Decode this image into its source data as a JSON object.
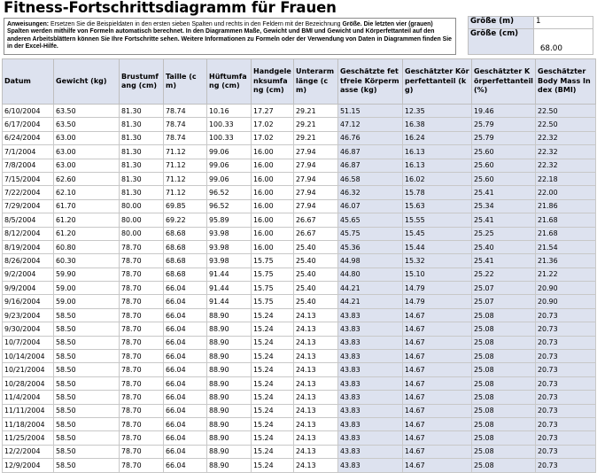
{
  "title": "Fitness-Fortschrittsdiagramm für Frauen",
  "instructions": {
    "label": "Anweisungen:",
    "text1": " Ersetzen Sie die Beispieldaten in den ersten sieben Spalten und rechts in den Feldern mit der Bezeichnung ",
    "bold1": "Größe.",
    "text2": " ",
    "bold2": "Die letzten vier (grauen) Spalten werden mithilfe von Formeln automatisch berechnet. In den Diagrammen Maße, Gewicht und BMI und Gewicht und Körperfettanteil auf den anderen Arbeitsblättern können Sie Ihre Fortschritte sehen. Weitere Informationen zu Formeln oder der Verwendung von Daten in Diagrammen finden Sie in der Excel-Hilfe."
  },
  "size_box": {
    "size_m_label": "Größe (m)",
    "size_m_value": "1",
    "size_cm_label": "Größe (cm)",
    "size_cm_value": "68.00"
  },
  "columns": [
    "Datum",
    "Gewicht (kg)",
    "Brustumfang (cm)",
    "Taille (cm)",
    "Hüftumfang (cm)",
    "Handgelenksumfang (cm)",
    "Unterarmlänge (cm)",
    "Geschätzte fettfreie Körpermasse (kg)",
    "Geschätzter Körperfettanteil (kg)",
    "Geschätzter Körperfettanteil (%)",
    "Geschätzter Body Mass Index (BMI)"
  ],
  "rows": [
    [
      "6/10/2004",
      "63.50",
      "81.30",
      "78.74",
      "10.16",
      "17.27",
      "29.21",
      "51.15",
      "12.35",
      "19.46",
      "22.50"
    ],
    [
      "6/17/2004",
      "63.50",
      "81.30",
      "78.74",
      "100.33",
      "17.02",
      "29.21",
      "47.12",
      "16.38",
      "25.79",
      "22.50"
    ],
    [
      "6/24/2004",
      "63.00",
      "81.30",
      "78.74",
      "100.33",
      "17.02",
      "29.21",
      "46.76",
      "16.24",
      "25.79",
      "22.32"
    ],
    [
      "7/1/2004",
      "63.00",
      "81.30",
      "71.12",
      "99.06",
      "16.00",
      "27.94",
      "46.87",
      "16.13",
      "25.60",
      "22.32"
    ],
    [
      "7/8/2004",
      "63.00",
      "81.30",
      "71.12",
      "99.06",
      "16.00",
      "27.94",
      "46.87",
      "16.13",
      "25.60",
      "22.32"
    ],
    [
      "7/15/2004",
      "62.60",
      "81.30",
      "71.12",
      "99.06",
      "16.00",
      "27.94",
      "46.58",
      "16.02",
      "25.60",
      "22.18"
    ],
    [
      "7/22/2004",
      "62.10",
      "81.30",
      "71.12",
      "96.52",
      "16.00",
      "27.94",
      "46.32",
      "15.78",
      "25.41",
      "22.00"
    ],
    [
      "7/29/2004",
      "61.70",
      "80.00",
      "69.85",
      "96.52",
      "16.00",
      "27.94",
      "46.07",
      "15.63",
      "25.34",
      "21.86"
    ],
    [
      "8/5/2004",
      "61.20",
      "80.00",
      "69.22",
      "95.89",
      "16.00",
      "26.67",
      "45.65",
      "15.55",
      "25.41",
      "21.68"
    ],
    [
      "8/12/2004",
      "61.20",
      "80.00",
      "68.68",
      "93.98",
      "16.00",
      "26.67",
      "45.75",
      "15.45",
      "25.25",
      "21.68"
    ],
    [
      "8/19/2004",
      "60.80",
      "78.70",
      "68.68",
      "93.98",
      "16.00",
      "25.40",
      "45.36",
      "15.44",
      "25.40",
      "21.54"
    ],
    [
      "8/26/2004",
      "60.30",
      "78.70",
      "68.68",
      "93.98",
      "15.75",
      "25.40",
      "44.98",
      "15.32",
      "25.41",
      "21.36"
    ],
    [
      "9/2/2004",
      "59.90",
      "78.70",
      "68.68",
      "91.44",
      "15.75",
      "25.40",
      "44.80",
      "15.10",
      "25.22",
      "21.22"
    ],
    [
      "9/9/2004",
      "59.00",
      "78.70",
      "66.04",
      "91.44",
      "15.75",
      "25.40",
      "44.21",
      "14.79",
      "25.07",
      "20.90"
    ],
    [
      "9/16/2004",
      "59.00",
      "78.70",
      "66.04",
      "91.44",
      "15.75",
      "25.40",
      "44.21",
      "14.79",
      "25.07",
      "20.90"
    ],
    [
      "9/23/2004",
      "58.50",
      "78.70",
      "66.04",
      "88.90",
      "15.24",
      "24.13",
      "43.83",
      "14.67",
      "25.08",
      "20.73"
    ],
    [
      "9/30/2004",
      "58.50",
      "78.70",
      "66.04",
      "88.90",
      "15.24",
      "24.13",
      "43.83",
      "14.67",
      "25.08",
      "20.73"
    ],
    [
      "10/7/2004",
      "58.50",
      "78.70",
      "66.04",
      "88.90",
      "15.24",
      "24.13",
      "43.83",
      "14.67",
      "25.08",
      "20.73"
    ],
    [
      "10/14/2004",
      "58.50",
      "78.70",
      "66.04",
      "88.90",
      "15.24",
      "24.13",
      "43.83",
      "14.67",
      "25.08",
      "20.73"
    ],
    [
      "10/21/2004",
      "58.50",
      "78.70",
      "66.04",
      "88.90",
      "15.24",
      "24.13",
      "43.83",
      "14.67",
      "25.08",
      "20.73"
    ],
    [
      "10/28/2004",
      "58.50",
      "78.70",
      "66.04",
      "88.90",
      "15.24",
      "24.13",
      "43.83",
      "14.67",
      "25.08",
      "20.73"
    ],
    [
      "11/4/2004",
      "58.50",
      "78.70",
      "66.04",
      "88.90",
      "15.24",
      "24.13",
      "43.83",
      "14.67",
      "25.08",
      "20.73"
    ],
    [
      "11/11/2004",
      "58.50",
      "78.70",
      "66.04",
      "88.90",
      "15.24",
      "24.13",
      "43.83",
      "14.67",
      "25.08",
      "20.73"
    ],
    [
      "11/18/2004",
      "58.50",
      "78.70",
      "66.04",
      "88.90",
      "15.24",
      "24.13",
      "43.83",
      "14.67",
      "25.08",
      "20.73"
    ],
    [
      "11/25/2004",
      "58.50",
      "78.70",
      "66.04",
      "88.90",
      "15.24",
      "24.13",
      "43.83",
      "14.67",
      "25.08",
      "20.73"
    ],
    [
      "12/2/2004",
      "58.50",
      "78.70",
      "66.04",
      "88.90",
      "15.24",
      "24.13",
      "43.83",
      "14.67",
      "25.08",
      "20.73"
    ],
    [
      "12/9/2004",
      "58.50",
      "78.70",
      "66.04",
      "88.90",
      "15.24",
      "24.13",
      "43.83",
      "14.67",
      "25.08",
      "20.73"
    ]
  ],
  "colors": {
    "header_fill": "#dde2ef",
    "calculated_column_fill": "#dde2ef",
    "grid_line": "#c8c8c8"
  }
}
